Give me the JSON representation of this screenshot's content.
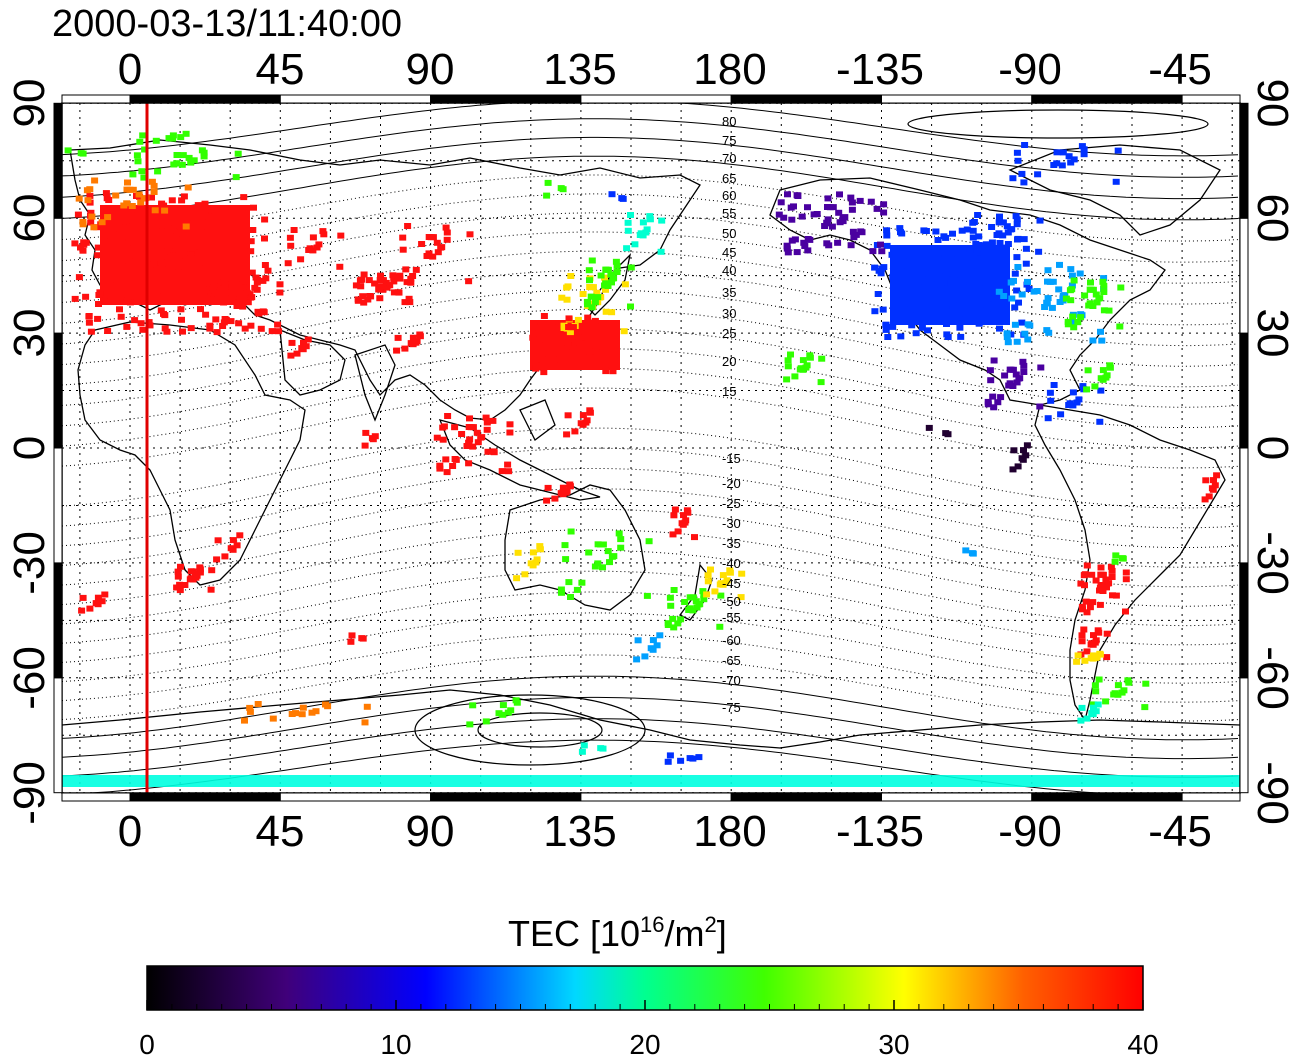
{
  "title": "2000-03-13/11:40:00",
  "map": {
    "top_lon_labels": [
      "0",
      "45",
      "90",
      "135",
      "180",
      "-135",
      "-90",
      "-45"
    ],
    "bottom_lon_labels": [
      "0",
      "45",
      "90",
      "135",
      "180",
      "-135",
      "-90",
      "-45"
    ],
    "left_lat_labels": [
      "90",
      "60",
      "30",
      "0",
      "-30",
      "-60",
      "-90"
    ],
    "right_lat_labels": [
      "90",
      "60",
      "30",
      "0",
      "-30",
      "-60",
      "-90"
    ],
    "contour_labels": [
      "80",
      "75",
      "70",
      "65",
      "60",
      "55",
      "50",
      "45",
      "40",
      "35",
      "30",
      "25",
      "20",
      "15",
      "-15",
      "-20",
      "-25",
      "-30",
      "-35",
      "-40",
      "-45",
      "-50",
      "-55",
      "-60",
      "-65",
      "-70",
      "-75"
    ],
    "marker_line_color": "#e00000",
    "grid": true
  },
  "colorbar": {
    "title_prefix": "TEC  [10",
    "title_sup1": "16",
    "title_mid": "/m",
    "title_sup2": "2",
    "title_suffix": "]",
    "ticks": [
      "0",
      "10",
      "20",
      "30",
      "40"
    ],
    "colors": [
      "#000000",
      "#3a0070",
      "#0000ff",
      "#00ffff",
      "#00ff00",
      "#ffff00",
      "#ff7f00",
      "#ff0000"
    ]
  }
}
